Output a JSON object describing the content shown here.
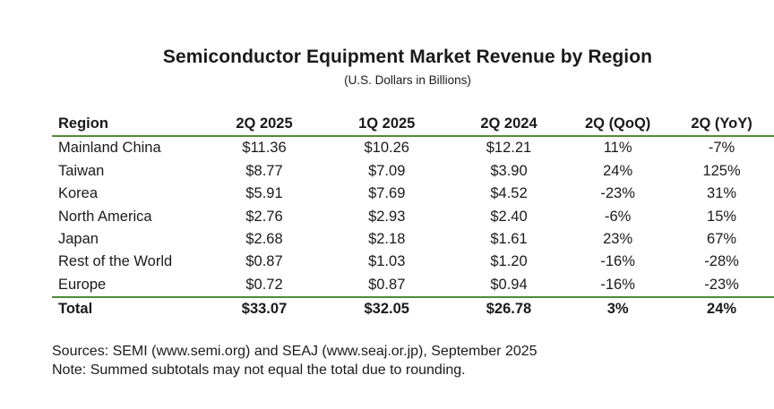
{
  "chart_data": {
    "type": "table",
    "title": "Semiconductor Equipment Market Revenue by Region",
    "subtitle": "(U.S. Dollars in Billions)",
    "columns": [
      "Region",
      "2Q 2025",
      "1Q 2025",
      "2Q 2024",
      "2Q (QoQ)",
      "2Q (YoY)"
    ],
    "rows": [
      [
        "Mainland China",
        "$11.36",
        "$10.26",
        "$12.21",
        "11%",
        "-7%"
      ],
      [
        "Taiwan",
        "$8.77",
        "$7.09",
        "$3.90",
        "24%",
        "125%"
      ],
      [
        "Korea",
        "$5.91",
        "$7.69",
        "$4.52",
        "-23%",
        "31%"
      ],
      [
        "North America",
        "$2.76",
        "$2.93",
        "$2.40",
        "-6%",
        "15%"
      ],
      [
        "Japan",
        "$2.68",
        "$2.18",
        "$1.61",
        "23%",
        "67%"
      ],
      [
        "Rest of the World",
        "$0.87",
        "$1.03",
        "$1.20",
        "-16%",
        "-28%"
      ],
      [
        "Europe",
        "$0.72",
        "$0.87",
        "$0.94",
        "-16%",
        "-23%"
      ]
    ],
    "total": [
      "Total",
      "$33.07",
      "$32.05",
      "$26.78",
      "3%",
      "24%"
    ],
    "accent_color": "#4f8a3a"
  },
  "notes": {
    "sources": "Sources: SEMI (www.semi.org) and SEAJ (www.seaj.or.jp), September 2025",
    "note": "Note: Summed subtotals may not equal the total due to rounding."
  }
}
